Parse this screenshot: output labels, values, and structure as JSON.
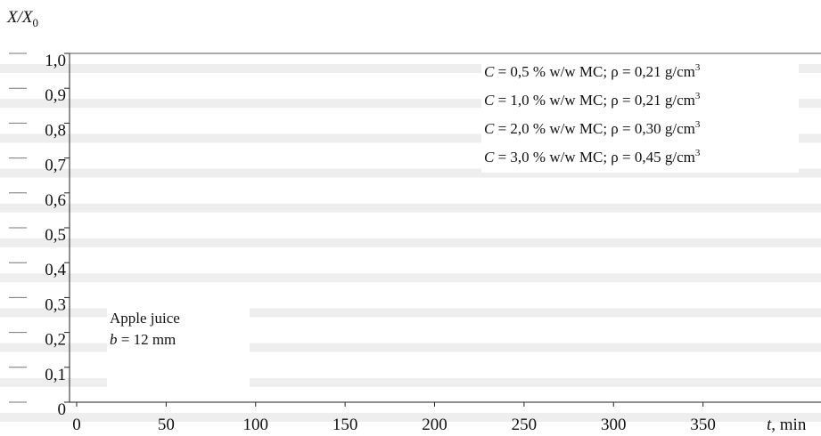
{
  "chart_data": {
    "type": "line",
    "title": "",
    "ylabel": "X/X",
    "ylabel_sub": "0",
    "xlabel_var": "t",
    "xlabel_unit": ", min",
    "xlim": [
      0,
      400
    ],
    "ylim": [
      0,
      1.0
    ],
    "x_ticks": [
      "0",
      "50",
      "100",
      "150",
      "200",
      "250",
      "300",
      "350"
    ],
    "y_ticks": [
      "0",
      "0,1",
      "0,2",
      "0,3",
      "0,4",
      "0,5",
      "0,6",
      "0,7",
      "0,8",
      "0,9",
      "1,0"
    ],
    "grid": false,
    "legend_position": "top-right",
    "legend": [
      {
        "var": "C",
        "text": " = 0,5 % w/w MC; ρ = 0,21 g/cm",
        "sup": "3"
      },
      {
        "var": "C",
        "text": " = 1,0 % w/w MC; ρ = 0,21 g/cm",
        "sup": "3"
      },
      {
        "var": "C",
        "text": " = 2,0 % w/w MC; ρ = 0,30 g/cm",
        "sup": "3"
      },
      {
        "var": "C",
        "text": " = 3,0 % w/w MC; ρ = 0,45 g/cm",
        "sup": "3"
      }
    ],
    "annotation": {
      "line1": "Apple juice",
      "line2_var": "b",
      "line2_text": " = 12 mm"
    },
    "series": []
  }
}
